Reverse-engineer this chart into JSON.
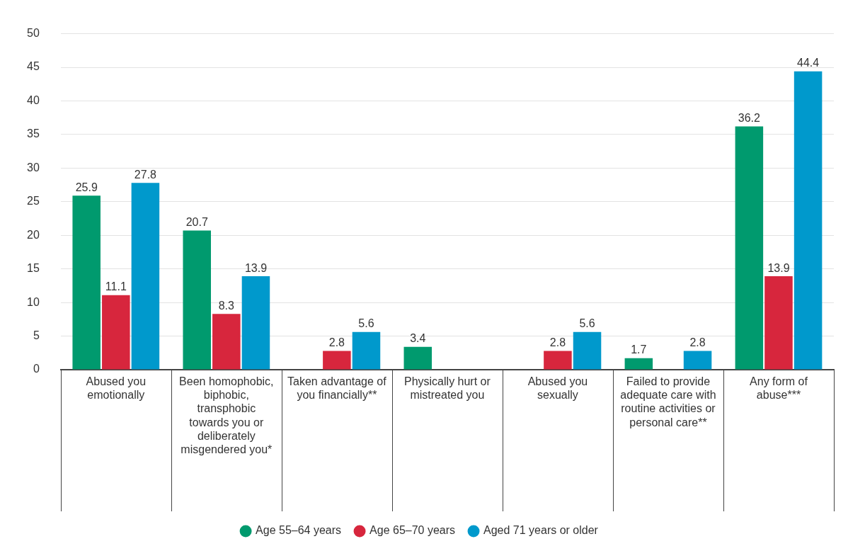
{
  "chart_data": {
    "type": "bar",
    "categories": [
      "Abused you emotionally",
      "Been homophobic, biphobic, transphobic towards you or deliberately misgendered you*",
      "Taken advantage of you financially**",
      "Physically hurt or mistreated you",
      "Abused you sexually",
      "Failed to provide adequate care with routine activities or personal care**",
      "Any form of abuse***"
    ],
    "series": [
      {
        "name": "Age 55–64 years",
        "color": "#009a6e",
        "values": [
          25.9,
          20.7,
          null,
          3.4,
          null,
          1.7,
          36.2
        ]
      },
      {
        "name": "Age 65–70 years",
        "color": "#d7263d",
        "values": [
          11.1,
          8.3,
          2.8,
          null,
          2.8,
          null,
          13.9
        ]
      },
      {
        "name": "Aged 71 years or older",
        "color": "#0099cc",
        "values": [
          27.8,
          13.9,
          5.6,
          null,
          5.6,
          2.8,
          44.4
        ]
      }
    ],
    "ylim": [
      0,
      50
    ],
    "yticks": [
      0,
      5,
      10,
      15,
      20,
      25,
      30,
      35,
      40,
      45,
      50
    ],
    "grid": "y",
    "legend": "bottom",
    "data_labels": true
  }
}
